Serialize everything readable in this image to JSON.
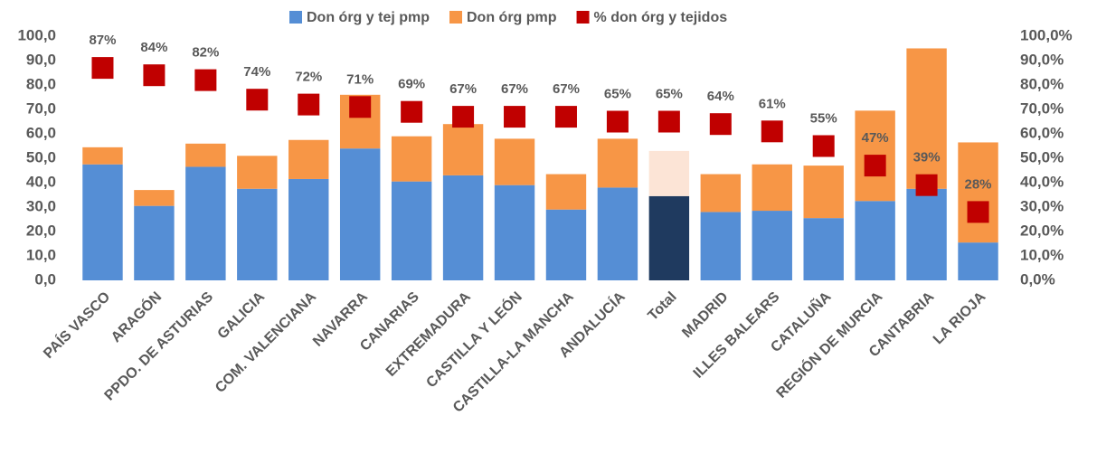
{
  "chart_data": {
    "type": "bar",
    "categories": [
      "PAÍS VASCO",
      "ARAGÓN",
      "PPDO. DE ASTURIAS",
      "GALICIA",
      "COM. VALENCIANA",
      "NAVARRA",
      "CANARIAS",
      "EXTREMADURA",
      "CASTILLA Y LEÓN",
      "CASTILLA-LA MANCHA",
      "ANDALUCÍA",
      "Total",
      "MADRID",
      "ILLES BALEARS",
      "CATALUÑA",
      "REGIÓN DE MURCIA",
      "CANTABRIA",
      "LA RIOJA"
    ],
    "series": [
      {
        "name": "Don órg y tej pmp",
        "color": "#558ed5",
        "colors": [
          "#558ed5",
          "#558ed5",
          "#558ed5",
          "#558ed5",
          "#558ed5",
          "#558ed5",
          "#558ed5",
          "#558ed5",
          "#558ed5",
          "#558ed5",
          "#558ed5",
          "#1f3a5f",
          "#558ed5",
          "#558ed5",
          "#558ed5",
          "#558ed5",
          "#558ed5",
          "#558ed5"
        ],
        "values": [
          47.5,
          30.5,
          46.5,
          37.5,
          41.5,
          54,
          40.5,
          43,
          39,
          29,
          38,
          34.5,
          28,
          28.5,
          25.5,
          32.5,
          37.5,
          15.5
        ]
      },
      {
        "name": "Don órg pmp",
        "color": "#f79646",
        "colors": [
          "#f79646",
          "#f79646",
          "#f79646",
          "#f79646",
          "#f79646",
          "#f79646",
          "#f79646",
          "#f79646",
          "#f79646",
          "#f79646",
          "#f79646",
          "#fce4d6",
          "#f79646",
          "#f79646",
          "#f79646",
          "#f79646",
          "#f79646",
          "#f79646"
        ],
        "values": [
          7,
          6.5,
          9.5,
          13.5,
          16,
          22,
          18.5,
          21,
          19,
          14.5,
          20,
          18.5,
          15.5,
          19,
          21.5,
          37,
          57.5,
          41
        ]
      },
      {
        "name": "% don órg y tejidos",
        "color": "#c00000",
        "axis": "y2",
        "marker": "square",
        "values": [
          87,
          84,
          82,
          74,
          72,
          71,
          69,
          67,
          67,
          67,
          65,
          65,
          64,
          61,
          55,
          47,
          39,
          28
        ],
        "value_labels": [
          "87%",
          "84%",
          "82%",
          "74%",
          "72%",
          "71%",
          "69%",
          "67%",
          "67%",
          "67%",
          "65%",
          "65%",
          "64%",
          "61%",
          "55%",
          "47%",
          "39%",
          "28%"
        ]
      }
    ],
    "ylim": [
      0,
      100
    ],
    "yticks": [
      {
        "value": 0,
        "label": "0,0"
      },
      {
        "value": 10,
        "label": "10,0"
      },
      {
        "value": 20,
        "label": "20,0"
      },
      {
        "value": 30,
        "label": "30,0"
      },
      {
        "value": 40,
        "label": "40,0"
      },
      {
        "value": 50,
        "label": "50,0"
      },
      {
        "value": 60,
        "label": "60,0"
      },
      {
        "value": 70,
        "label": "70,0"
      },
      {
        "value": 80,
        "label": "80,0"
      },
      {
        "value": 90,
        "label": "90,0"
      },
      {
        "value": 100,
        "label": "100,0"
      }
    ],
    "y2lim": [
      0,
      100
    ],
    "y2ticks": [
      {
        "value": 0,
        "label": "0,0%"
      },
      {
        "value": 10,
        "label": "10,0%"
      },
      {
        "value": 20,
        "label": "20,0%"
      },
      {
        "value": 30,
        "label": "30,0%"
      },
      {
        "value": 40,
        "label": "40,0%"
      },
      {
        "value": 50,
        "label": "50,0%"
      },
      {
        "value": 60,
        "label": "60,0%"
      },
      {
        "value": 70,
        "label": "70,0%"
      },
      {
        "value": 80,
        "label": "80,0%"
      },
      {
        "value": 90,
        "label": "90,0%"
      },
      {
        "value": 100,
        "label": "100,0%"
      }
    ],
    "legend": "top",
    "grid": false
  }
}
